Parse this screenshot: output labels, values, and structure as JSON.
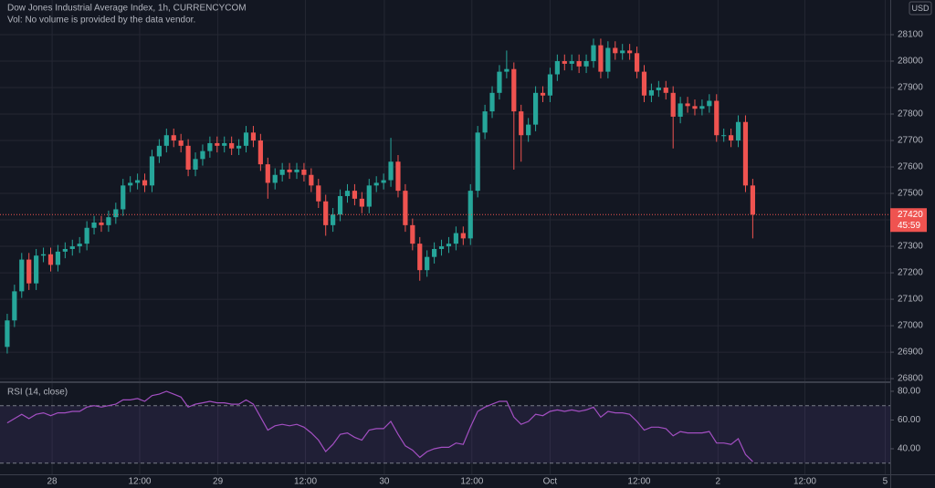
{
  "chart_data": [
    {
      "type": "candlestick",
      "title": "Dow Jones Industrial Average Index, 1h, CURRENCYCOM",
      "subtitle": "Vol: No volume is provided by the data vendor.",
      "currency": "USD",
      "countdown": "45:59",
      "up_color": "#26a69a",
      "down_color": "#ef5350",
      "ylim": [
        26790,
        28231
      ],
      "yticks": [
        26800,
        26900,
        27000,
        27100,
        27200,
        27300,
        27400,
        27500,
        27600,
        27700,
        27800,
        27900,
        28000,
        28100
      ],
      "xlim": [
        -1,
        122
      ],
      "xticks": [
        {
          "value": 6.2,
          "label": "28"
        },
        {
          "value": 18.3,
          "label": "12:00"
        },
        {
          "value": 29.1,
          "label": "29"
        },
        {
          "value": 41.2,
          "label": "12:00"
        },
        {
          "value": 52.1,
          "label": "30"
        },
        {
          "value": 64.2,
          "label": "12:00"
        },
        {
          "value": 75.0,
          "label": "Oct"
        },
        {
          "value": 87.3,
          "label": "12:00"
        },
        {
          "value": 98.2,
          "label": "2"
        },
        {
          "value": 110.2,
          "label": "12:00"
        },
        {
          "value": 121.3,
          "label": "5"
        }
      ],
      "grid": true,
      "open": [
        26920,
        27020,
        27130,
        27250,
        27160,
        27265,
        27270,
        27230,
        27280,
        27290,
        27300,
        27310,
        27370,
        27390,
        27380,
        27410,
        27440,
        27530,
        27540,
        27550,
        27530,
        27640,
        27680,
        27720,
        27700,
        27680,
        27590,
        27630,
        27660,
        27690,
        27680,
        27690,
        27670,
        27680,
        27730,
        27700,
        27610,
        27540,
        27570,
        27590,
        27580,
        27590,
        27570,
        27530,
        27470,
        27380,
        27420,
        27490,
        27510,
        27480,
        27450,
        27530,
        27540,
        27550,
        27620,
        27510,
        27380,
        27310,
        27210,
        27260,
        27290,
        27300,
        27310,
        27350,
        27330,
        27510,
        27730,
        27810,
        27880,
        27960,
        27970,
        27810,
        27720,
        27760,
        27880,
        27870,
        27950,
        28000,
        27990,
        28000,
        27980,
        28000,
        28060,
        27960,
        28050,
        28030,
        28040,
        28030,
        27960,
        27870,
        27890,
        27900,
        27880,
        27790,
        27840,
        27830,
        27820,
        27830,
        27850,
        27720,
        27720,
        27700,
        27770,
        27530
      ],
      "high": [
        27045,
        27155,
        27275,
        27275,
        27290,
        27295,
        27295,
        27305,
        27315,
        27325,
        27335,
        27395,
        27415,
        27415,
        27435,
        27465,
        27555,
        27565,
        27575,
        27575,
        27665,
        27705,
        27745,
        27745,
        27725,
        27705,
        27655,
        27685,
        27715,
        27715,
        27715,
        27715,
        27705,
        27755,
        27755,
        27725,
        27635,
        27595,
        27615,
        27615,
        27615,
        27615,
        27595,
        27555,
        27495,
        27445,
        27515,
        27535,
        27535,
        27505,
        27555,
        27565,
        27575,
        27710,
        27645,
        27535,
        27405,
        27335,
        27285,
        27315,
        27325,
        27335,
        27375,
        27375,
        27535,
        27755,
        27835,
        27905,
        27985,
        28040,
        27995,
        27835,
        27785,
        27905,
        27905,
        27975,
        28025,
        28025,
        28025,
        28025,
        28025,
        28085,
        28085,
        28075,
        28075,
        28065,
        28065,
        28055,
        27985,
        27915,
        27925,
        27925,
        27905,
        27865,
        27865,
        27855,
        27855,
        27875,
        27875,
        27745,
        27745,
        27795,
        27795,
        27555
      ],
      "low": [
        26895,
        26995,
        27105,
        27135,
        27135,
        27240,
        27205,
        27205,
        27255,
        27265,
        27275,
        27285,
        27345,
        27355,
        27355,
        27385,
        27415,
        27505,
        27515,
        27505,
        27505,
        27615,
        27655,
        27675,
        27655,
        27565,
        27565,
        27605,
        27635,
        27655,
        27655,
        27645,
        27645,
        27655,
        27675,
        27585,
        27480,
        27515,
        27545,
        27555,
        27555,
        27545,
        27505,
        27445,
        27340,
        27355,
        27395,
        27465,
        27455,
        27425,
        27425,
        27505,
        27515,
        27525,
        27485,
        27355,
        27285,
        27170,
        27185,
        27235,
        27265,
        27275,
        27285,
        27305,
        27305,
        27485,
        27705,
        27785,
        27855,
        27935,
        27590,
        27620,
        27695,
        27735,
        27845,
        27845,
        27925,
        27965,
        27965,
        27955,
        27955,
        27975,
        27935,
        27935,
        28005,
        28005,
        28005,
        27935,
        27845,
        27845,
        27865,
        27855,
        27670,
        27765,
        27805,
        27795,
        27795,
        27805,
        27695,
        27695,
        27675,
        27675,
        27505,
        27330
      ],
      "close": [
        27020,
        27130,
        27250,
        27160,
        27265,
        27270,
        27230,
        27280,
        27290,
        27300,
        27310,
        27370,
        27390,
        27380,
        27410,
        27440,
        27530,
        27540,
        27550,
        27530,
        27640,
        27680,
        27720,
        27700,
        27680,
        27590,
        27630,
        27660,
        27690,
        27680,
        27690,
        27670,
        27680,
        27730,
        27700,
        27610,
        27540,
        27570,
        27590,
        27580,
        27590,
        27570,
        27530,
        27470,
        27380,
        27420,
        27490,
        27510,
        27480,
        27450,
        27530,
        27540,
        27550,
        27620,
        27510,
        27380,
        27310,
        27210,
        27260,
        27290,
        27300,
        27310,
        27350,
        27330,
        27510,
        27730,
        27810,
        27880,
        27960,
        27970,
        27810,
        27720,
        27760,
        27880,
        27870,
        27950,
        28000,
        27990,
        28000,
        27980,
        28000,
        28060,
        27960,
        28050,
        28030,
        28040,
        28030,
        27960,
        27870,
        27890,
        27900,
        27880,
        27790,
        27840,
        27830,
        27820,
        27830,
        27850,
        27720,
        27720,
        27700,
        27770,
        27530,
        27420
      ]
    },
    {
      "type": "line",
      "title": "RSI (14, close)",
      "color": "#a34fc2",
      "ylim": [
        22.2,
        85.7
      ],
      "yticks": [
        {
          "value": 80,
          "label": "80.00"
        },
        {
          "value": 60,
          "label": "60.00"
        },
        {
          "value": 40,
          "label": "40.00"
        }
      ],
      "band": [
        30,
        70
      ],
      "values": [
        58,
        61,
        64,
        61,
        64,
        65,
        63,
        65,
        65,
        66,
        66,
        69,
        70,
        69,
        70,
        71,
        74,
        74,
        75,
        73,
        77,
        78,
        80,
        78,
        76,
        69,
        71,
        72,
        73,
        72,
        72,
        71,
        71,
        74,
        71,
        62,
        53,
        56,
        57,
        56,
        57,
        55,
        51,
        46,
        38,
        43,
        50,
        51,
        48,
        46,
        53,
        54,
        54,
        59,
        50,
        42,
        39,
        34,
        38,
        40,
        41,
        41,
        44,
        43,
        55,
        66,
        69,
        71,
        73,
        73,
        62,
        57,
        59,
        64,
        63,
        66,
        67,
        66,
        67,
        66,
        67,
        69,
        62,
        66,
        65,
        65,
        64,
        59,
        53,
        55,
        55,
        54,
        49,
        52,
        51,
        51,
        51,
        52,
        44,
        44,
        43,
        47,
        36,
        31
      ]
    }
  ]
}
